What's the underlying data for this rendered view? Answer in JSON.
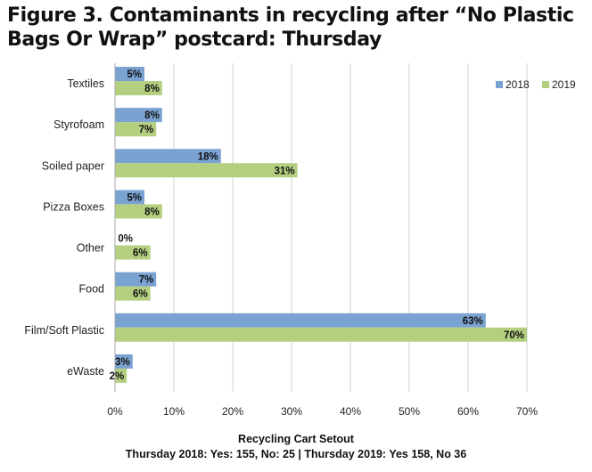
{
  "title": "Figure 3. Contaminants in recycling after “No Plastic Bags Or Wrap” postcard: Thursday",
  "chart_data": {
    "type": "bar",
    "orientation": "horizontal",
    "categories": [
      "Textiles",
      "Styrofoam",
      "Soiled paper",
      "Pizza Boxes",
      "Other",
      "Food",
      "Film/Soft Plastic",
      "eWaste"
    ],
    "series": [
      {
        "name": "2018",
        "color": "#7ba3d2",
        "values": [
          5,
          8,
          18,
          5,
          0,
          7,
          63,
          3
        ],
        "labels": [
          "5%",
          "8%",
          "18%",
          "5%",
          "0%",
          "7%",
          "63%",
          "3%"
        ]
      },
      {
        "name": "2019",
        "color": "#b3cf7f",
        "values": [
          8,
          7,
          31,
          8,
          6,
          6,
          70,
          2
        ],
        "labels": [
          "8%",
          "7%",
          "31%",
          "8%",
          "6%",
          "6%",
          "70%",
          "2%"
        ]
      }
    ],
    "xlim": [
      0,
      70
    ],
    "xticks": [
      0,
      10,
      20,
      30,
      40,
      50,
      60,
      70
    ],
    "xtick_labels": [
      "0%",
      "10%",
      "20%",
      "30%",
      "40%",
      "50%",
      "60%",
      "70%"
    ],
    "xlabel": "Recycling Cart Setout",
    "xlabel_sub": "Thursday 2018: Yes: 155, No: 25  |  Thursday 2019: Yes 158, No 36",
    "grid": true,
    "legend_position": "top-right"
  }
}
